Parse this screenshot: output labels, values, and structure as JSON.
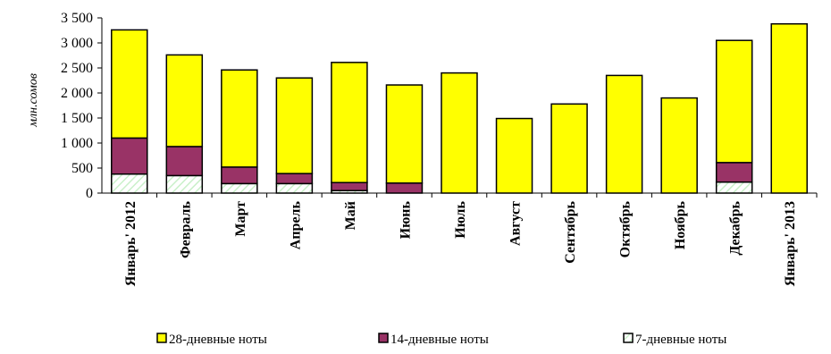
{
  "chart_data": {
    "type": "bar",
    "stacked": true,
    "title": "",
    "xlabel": "",
    "ylabel": "млн.сомов",
    "ylim": [
      0,
      3500
    ],
    "yticks": [
      0,
      500,
      1000,
      1500,
      2000,
      2500,
      3000,
      3500
    ],
    "ytick_labels": [
      "0",
      "500",
      "1 000",
      "1 500",
      "2 000",
      "2 500",
      "3 000",
      "3 500"
    ],
    "grid": false,
    "legend_position": "bottom",
    "categories": [
      "Январь' 2012",
      "Февраль",
      "Март",
      "Апрель",
      "Май",
      "Июнь",
      "Июль",
      "Август",
      "Сентябрь",
      "Октябрь",
      "Ноябрь",
      "Декабрь",
      "Январь' 2013"
    ],
    "series": [
      {
        "name": "7-дневные ноты",
        "color": "#ffffff",
        "values": [
          380,
          350,
          190,
          190,
          50,
          0,
          0,
          0,
          0,
          0,
          0,
          220,
          0
        ]
      },
      {
        "name": "14-дневные ноты",
        "color": "#993366",
        "values": [
          720,
          580,
          330,
          200,
          160,
          200,
          0,
          0,
          0,
          0,
          0,
          390,
          0
        ]
      },
      {
        "name": "28-дневные ноты",
        "color": "#ffff00",
        "values": [
          2160,
          1830,
          1940,
          1910,
          2400,
          1960,
          2400,
          1490,
          1780,
          2350,
          1900,
          2440,
          3380
        ]
      }
    ],
    "legend_order": [
      "28-дневные ноты",
      "14-дневные ноты",
      "7-дневные ноты"
    ]
  }
}
